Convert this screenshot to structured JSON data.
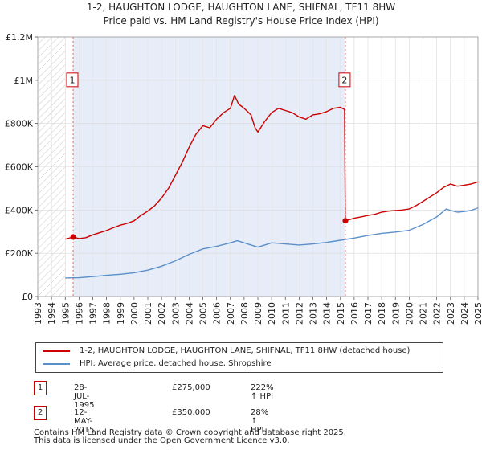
{
  "title": {
    "line1": "1-2, HAUGHTON LODGE, HAUGHTON LANE, SHIFNAL, TF11 8HW",
    "line2": "Price paid vs. HM Land Registry's House Price Index (HPI)"
  },
  "chart_data": {
    "type": "line",
    "title": "1-2, HAUGHTON LODGE, HAUGHTON LANE, SHIFNAL, TF11 8HW — Price paid vs. HM Land Registry's House Price Index (HPI)",
    "xlim": [
      1993,
      2025
    ],
    "ylim": [
      0,
      1200000
    ],
    "x_ticks": [
      "1993",
      "1994",
      "1995",
      "1996",
      "1997",
      "1998",
      "1999",
      "2000",
      "2001",
      "2002",
      "2003",
      "2004",
      "2005",
      "2006",
      "2007",
      "2008",
      "2009",
      "2010",
      "2011",
      "2012",
      "2013",
      "2014",
      "2015",
      "2016",
      "2017",
      "2018",
      "2019",
      "2020",
      "2021",
      "2022",
      "2023",
      "2024",
      "2025"
    ],
    "y_ticks": [
      {
        "value": 0,
        "label": "£0"
      },
      {
        "value": 200000,
        "label": "£200K"
      },
      {
        "value": 400000,
        "label": "£400K"
      },
      {
        "value": 600000,
        "label": "£600K"
      },
      {
        "value": 800000,
        "label": "£800K"
      },
      {
        "value": 1000000,
        "label": "£1M"
      },
      {
        "value": 1200000,
        "label": "£1.2M"
      }
    ],
    "grid": true,
    "hatched_regions": [
      [
        1993,
        1995
      ]
    ],
    "shaded_region": [
      1995.57,
      2015.36
    ],
    "series": [
      {
        "name": "1-2, HAUGHTON LODGE, HAUGHTON LANE, SHIFNAL, TF11 8HW (detached house)",
        "color": "#cc0000",
        "points": [
          [
            1995.0,
            265000
          ],
          [
            1995.57,
            275000
          ],
          [
            1996.0,
            268000
          ],
          [
            1996.5,
            272000
          ],
          [
            1997.0,
            285000
          ],
          [
            1997.5,
            295000
          ],
          [
            1998.0,
            305000
          ],
          [
            1998.5,
            318000
          ],
          [
            1999.0,
            330000
          ],
          [
            1999.5,
            338000
          ],
          [
            2000.0,
            350000
          ],
          [
            2000.5,
            375000
          ],
          [
            2001.0,
            395000
          ],
          [
            2001.5,
            420000
          ],
          [
            2002.0,
            455000
          ],
          [
            2002.5,
            500000
          ],
          [
            2003.0,
            560000
          ],
          [
            2003.5,
            620000
          ],
          [
            2004.0,
            690000
          ],
          [
            2004.5,
            750000
          ],
          [
            2005.0,
            790000
          ],
          [
            2005.5,
            780000
          ],
          [
            2006.0,
            820000
          ],
          [
            2006.5,
            850000
          ],
          [
            2007.0,
            870000
          ],
          [
            2007.3,
            930000
          ],
          [
            2007.6,
            890000
          ],
          [
            2008.0,
            870000
          ],
          [
            2008.5,
            840000
          ],
          [
            2008.8,
            780000
          ],
          [
            2009.0,
            760000
          ],
          [
            2009.5,
            810000
          ],
          [
            2010.0,
            850000
          ],
          [
            2010.5,
            870000
          ],
          [
            2011.0,
            860000
          ],
          [
            2011.5,
            850000
          ],
          [
            2012.0,
            830000
          ],
          [
            2012.5,
            820000
          ],
          [
            2013.0,
            840000
          ],
          [
            2013.5,
            845000
          ],
          [
            2014.0,
            855000
          ],
          [
            2014.5,
            870000
          ],
          [
            2015.0,
            875000
          ],
          [
            2015.3,
            865000
          ],
          [
            2015.36,
            350000
          ],
          [
            2016.0,
            362000
          ],
          [
            2016.5,
            368000
          ],
          [
            2017.0,
            375000
          ],
          [
            2017.5,
            380000
          ],
          [
            2018.0,
            390000
          ],
          [
            2018.5,
            395000
          ],
          [
            2019.0,
            398000
          ],
          [
            2019.5,
            400000
          ],
          [
            2020.0,
            405000
          ],
          [
            2020.5,
            420000
          ],
          [
            2021.0,
            440000
          ],
          [
            2021.5,
            460000
          ],
          [
            2022.0,
            480000
          ],
          [
            2022.5,
            505000
          ],
          [
            2023.0,
            520000
          ],
          [
            2023.5,
            510000
          ],
          [
            2024.0,
            515000
          ],
          [
            2024.5,
            520000
          ],
          [
            2025.0,
            530000
          ]
        ]
      },
      {
        "name": "HPI: Average price, detached house, Shropshire",
        "color": "#5b8fc9",
        "points": [
          [
            1995.0,
            86000
          ],
          [
            1996.0,
            87000
          ],
          [
            1997.0,
            92000
          ],
          [
            1998.0,
            98000
          ],
          [
            1999.0,
            103000
          ],
          [
            2000.0,
            110000
          ],
          [
            2001.0,
            122000
          ],
          [
            2002.0,
            140000
          ],
          [
            2003.0,
            165000
          ],
          [
            2004.0,
            195000
          ],
          [
            2005.0,
            220000
          ],
          [
            2006.0,
            232000
          ],
          [
            2007.0,
            248000
          ],
          [
            2007.5,
            258000
          ],
          [
            2008.0,
            248000
          ],
          [
            2008.5,
            238000
          ],
          [
            2009.0,
            228000
          ],
          [
            2009.5,
            238000
          ],
          [
            2010.0,
            248000
          ],
          [
            2011.0,
            243000
          ],
          [
            2012.0,
            238000
          ],
          [
            2013.0,
            243000
          ],
          [
            2014.0,
            250000
          ],
          [
            2015.0,
            260000
          ],
          [
            2016.0,
            270000
          ],
          [
            2017.0,
            282000
          ],
          [
            2018.0,
            292000
          ],
          [
            2019.0,
            298000
          ],
          [
            2020.0,
            306000
          ],
          [
            2021.0,
            333000
          ],
          [
            2022.0,
            368000
          ],
          [
            2022.7,
            405000
          ],
          [
            2023.0,
            398000
          ],
          [
            2023.5,
            390000
          ],
          [
            2024.0,
            393000
          ],
          [
            2024.5,
            398000
          ],
          [
            2025.0,
            410000
          ]
        ]
      }
    ],
    "markers": [
      {
        "label": "1",
        "x": 1995.57,
        "y": 275000
      },
      {
        "label": "2",
        "x": 2015.36,
        "y": 350000
      }
    ]
  },
  "legend": {
    "items": [
      {
        "label": "1-2, HAUGHTON LODGE, HAUGHTON LANE, SHIFNAL, TF11 8HW (detached house)",
        "color": "#cc0000"
      },
      {
        "label": "HPI: Average price, detached house, Shropshire",
        "color": "#5b8fc9"
      }
    ]
  },
  "sales": [
    {
      "num": "1",
      "date": "28-JUL-1995",
      "price": "£275,000",
      "hpi": "222% ↑ HPI"
    },
    {
      "num": "2",
      "date": "12-MAY-2015",
      "price": "£350,000",
      "hpi": "28% ↑ HPI"
    }
  ],
  "footer": {
    "line1": "Contains HM Land Registry data © Crown copyright and database right 2025.",
    "line2": "This data is licensed under the Open Government Licence v3.0."
  }
}
